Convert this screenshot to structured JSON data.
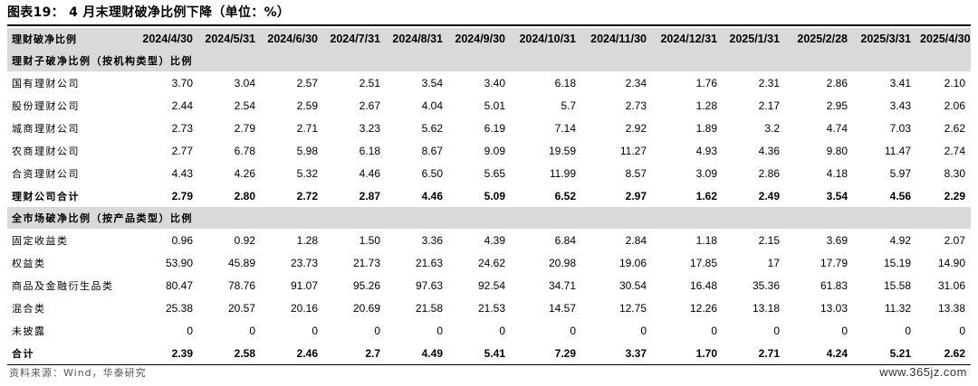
{
  "title": "图表19：  4 月末理财破净比例下降（单位：%）",
  "header": {
    "label": "理财破净比例",
    "dates": [
      "2024/4/30",
      "2024/5/31",
      "2024/6/30",
      "2024/7/31",
      "2024/8/31",
      "2024/9/30",
      "2024/10/31",
      "2024/11/30",
      "2024/12/31",
      "2025/1/31",
      "2025/2/28",
      "2025/3/31",
      "2025/4/30"
    ]
  },
  "section1": {
    "title": "理财子破净比例（按机构类型）比例",
    "rows": [
      {
        "label": "国有理财公司",
        "values": [
          "3.70",
          "3.04",
          "2.57",
          "2.51",
          "3.54",
          "3.40",
          "6.18",
          "2.34",
          "1.76",
          "2.31",
          "2.86",
          "3.41",
          "2.10"
        ]
      },
      {
        "label": "股份理财公司",
        "values": [
          "2.44",
          "2.54",
          "2.59",
          "2.67",
          "4.04",
          "5.01",
          "5.7",
          "2.73",
          "1.28",
          "2.17",
          "2.95",
          "3.43",
          "2.06"
        ]
      },
      {
        "label": "城商理财公司",
        "values": [
          "2.73",
          "2.79",
          "2.71",
          "3.23",
          "5.62",
          "6.19",
          "7.14",
          "2.92",
          "1.89",
          "3.2",
          "4.74",
          "7.03",
          "2.62"
        ]
      },
      {
        "label": "农商理财公司",
        "values": [
          "2.77",
          "6.78",
          "5.98",
          "6.18",
          "8.67",
          "9.09",
          "19.59",
          "11.27",
          "4.93",
          "4.36",
          "9.80",
          "11.47",
          "2.74"
        ]
      },
      {
        "label": "合资理财公司",
        "values": [
          "4.43",
          "4.26",
          "5.32",
          "4.46",
          "6.50",
          "5.65",
          "11.99",
          "8.57",
          "3.09",
          "2.86",
          "4.18",
          "5.97",
          "8.30"
        ]
      }
    ],
    "total": {
      "label": "理财公司合计",
      "values": [
        "2.79",
        "2.80",
        "2.72",
        "2.87",
        "4.46",
        "5.09",
        "6.52",
        "2.97",
        "1.62",
        "2.49",
        "3.54",
        "4.56",
        "2.29"
      ]
    }
  },
  "section2": {
    "title": "全市场破净比例（按产品类型）比例",
    "rows": [
      {
        "label": "固定收益类",
        "values": [
          "0.96",
          "0.92",
          "1.28",
          "1.50",
          "3.36",
          "4.39",
          "6.84",
          "2.84",
          "1.18",
          "2.15",
          "3.69",
          "4.92",
          "2.07"
        ]
      },
      {
        "label": "权益类",
        "values": [
          "53.90",
          "45.89",
          "23.73",
          "21.73",
          "21.63",
          "24.62",
          "20.98",
          "19.06",
          "17.85",
          "17",
          "17.79",
          "15.19",
          "14.90"
        ]
      },
      {
        "label": "商品及金融衍生品类",
        "values": [
          "80.47",
          "78.76",
          "91.07",
          "95.26",
          "97.63",
          "92.54",
          "34.71",
          "30.54",
          "16.48",
          "35.36",
          "61.83",
          "15.58",
          "31.06"
        ]
      },
      {
        "label": "混合类",
        "values": [
          "25.38",
          "20.57",
          "20.16",
          "20.69",
          "21.58",
          "21.53",
          "14.57",
          "12.75",
          "12.26",
          "13.18",
          "13.03",
          "11.32",
          "13.38"
        ]
      },
      {
        "label": "未披露",
        "values": [
          "0",
          "0",
          "0",
          "0",
          "0",
          "0",
          "0",
          "0",
          "0",
          "0",
          "0",
          "0",
          "0"
        ]
      }
    ],
    "total": {
      "label": "合计",
      "values": [
        "2.39",
        "2.58",
        "2.46",
        "2.7",
        "4.49",
        "5.41",
        "7.29",
        "3.37",
        "1.70",
        "2.71",
        "4.24",
        "5.21",
        "2.62"
      ]
    }
  },
  "footer": {
    "source": "资料来源：Wind，华泰研究",
    "watermark": "www.365jz.com"
  }
}
